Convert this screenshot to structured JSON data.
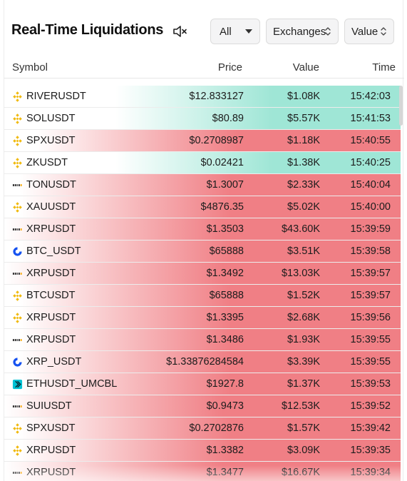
{
  "header": {
    "title": "Real-Time Liquidations",
    "mute_icon": "speaker-muted-icon",
    "filters": [
      {
        "label": "All",
        "icon": "chevron-down-icon"
      },
      {
        "label": "Exchanges",
        "icon": "sort-updown-icon"
      },
      {
        "label": "Value",
        "icon": "sort-updown-icon"
      }
    ]
  },
  "table": {
    "columns": [
      "Symbol",
      "Price",
      "Value",
      "Time"
    ],
    "colors": {
      "long": "#9fe6d6",
      "short": "#f07f85",
      "fade": "#ffffff"
    },
    "rows": [
      {
        "exchange": "binance",
        "symbol": "RIVERUSDT",
        "price": "$12.833127",
        "value": "$1.08K",
        "time": "15:42:03",
        "side": "long",
        "fill": 0.72
      },
      {
        "exchange": "binance",
        "symbol": "SOLUSDT",
        "price": "$80.89",
        "value": "$5.57K",
        "time": "15:41:53",
        "side": "long",
        "fill": 0.72
      },
      {
        "exchange": "binance",
        "symbol": "SPXUSDT",
        "price": "$0.2708987",
        "value": "$1.18K",
        "time": "15:40:55",
        "side": "short",
        "fill": 0.92
      },
      {
        "exchange": "binance",
        "symbol": "ZKUSDT",
        "price": "$0.02421",
        "value": "$1.38K",
        "time": "15:40:25",
        "side": "long",
        "fill": 0.72
      },
      {
        "exchange": "bybit",
        "symbol": "TONUSDT",
        "price": "$1.3007",
        "value": "$2.33K",
        "time": "15:40:04",
        "side": "short",
        "fill": 0.96
      },
      {
        "exchange": "binance",
        "symbol": "XAUUSDT",
        "price": "$4876.35",
        "value": "$5.02K",
        "time": "15:40:00",
        "side": "short",
        "fill": 0.96
      },
      {
        "exchange": "bybit",
        "symbol": "XRPUSDT",
        "price": "$1.3503",
        "value": "$43.60K",
        "time": "15:39:59",
        "side": "short",
        "fill": 1.0
      },
      {
        "exchange": "coinbase",
        "symbol": "BTC_USDT",
        "price": "$65888",
        "value": "$3.51K",
        "time": "15:39:58",
        "side": "short",
        "fill": 0.96
      },
      {
        "exchange": "bybit",
        "symbol": "XRPUSDT",
        "price": "$1.3492",
        "value": "$13.03K",
        "time": "15:39:57",
        "side": "short",
        "fill": 1.0
      },
      {
        "exchange": "binance",
        "symbol": "BTCUSDT",
        "price": "$65888",
        "value": "$1.52K",
        "time": "15:39:57",
        "side": "short",
        "fill": 0.96
      },
      {
        "exchange": "binance",
        "symbol": "XRPUSDT",
        "price": "$1.3395",
        "value": "$2.68K",
        "time": "15:39:56",
        "side": "short",
        "fill": 0.96
      },
      {
        "exchange": "bybit",
        "symbol": "XRPUSDT",
        "price": "$1.3486",
        "value": "$1.93K",
        "time": "15:39:55",
        "side": "short",
        "fill": 0.96
      },
      {
        "exchange": "coinbase",
        "symbol": "XRP_USDT",
        "price": "$1.33876284584",
        "value": "$3.39K",
        "time": "15:39:55",
        "side": "short",
        "fill": 0.96
      },
      {
        "exchange": "bitget",
        "symbol": "ETHUSDT_UMCBL",
        "price": "$1927.8",
        "value": "$1.37K",
        "time": "15:39:53",
        "side": "short",
        "fill": 0.96
      },
      {
        "exchange": "bybit",
        "symbol": "SUIUSDT",
        "price": "$0.9473",
        "value": "$12.53K",
        "time": "15:39:52",
        "side": "short",
        "fill": 1.0
      },
      {
        "exchange": "binance",
        "symbol": "SPXUSDT",
        "price": "$0.2702876",
        "value": "$1.57K",
        "time": "15:39:42",
        "side": "short",
        "fill": 0.96
      },
      {
        "exchange": "binance",
        "symbol": "XRPUSDT",
        "price": "$1.3382",
        "value": "$3.09K",
        "time": "15:39:35",
        "side": "short",
        "fill": 0.96
      },
      {
        "exchange": "bybit",
        "symbol": "XRPUSDT",
        "price": "$1.3477",
        "value": "$16.67K",
        "time": "15:39:34",
        "side": "short",
        "fill": 1.0
      }
    ]
  }
}
